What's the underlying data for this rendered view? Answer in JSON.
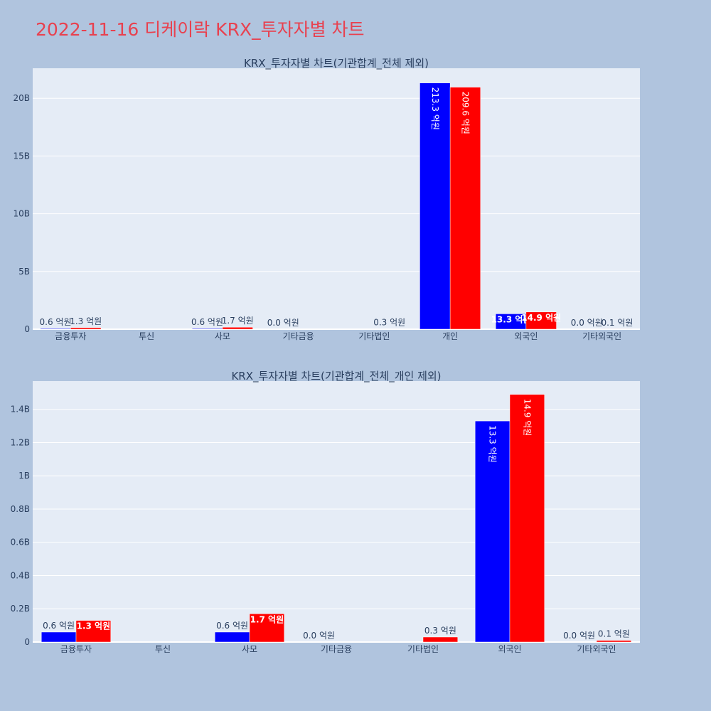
{
  "page_title": "2022-11-16 디케이락 KRX_투자자별 차트",
  "colors": {
    "buy": "#0000ff",
    "sell": "#ff0000",
    "title": "#e8414f",
    "plot_bg": "#e5ecf6",
    "page_bg": "#b0c4de"
  },
  "chart_data": [
    {
      "type": "bar",
      "title": "KRX_투자자별 차트(기관합계_전체 제외)",
      "categories": [
        "금융투자",
        "투신",
        "사모",
        "기타금융",
        "기타법인",
        "개인",
        "외국인",
        "기타외국인"
      ],
      "ylim": [
        0,
        22600000000
      ],
      "yticks": [
        0,
        5000000000,
        10000000000,
        15000000000,
        20000000000
      ],
      "ytick_labels": [
        "0",
        "5B",
        "10B",
        "15B",
        "20B"
      ],
      "series": [
        {
          "color": "#0000ff",
          "values": [
            60000000,
            0,
            60000000,
            0,
            0,
            21330000000,
            1330000000,
            0
          ],
          "labels": [
            "0.6 억원",
            "",
            "0.6 억원",
            "0.0 억원",
            "",
            "213.3 억원",
            "13.3 억원",
            "0.0 억원"
          ]
        },
        {
          "color": "#ff0000",
          "values": [
            130000000,
            0,
            170000000,
            0,
            30000000,
            20960000000,
            1490000000,
            10000000
          ],
          "labels": [
            "1.3 억원",
            "",
            "1.7 억원",
            "",
            "0.3 억원",
            "209.6 억원",
            "14.9 억원",
            "0.1 억원"
          ]
        }
      ],
      "grid": true
    },
    {
      "type": "bar",
      "title": "KRX_투자자별 차트(기관합계_전체_개인 제외)",
      "categories": [
        "금융투자",
        "투신",
        "사모",
        "기타금융",
        "기타법인",
        "외국인",
        "기타외국인"
      ],
      "ylim": [
        0,
        1570000000
      ],
      "yticks": [
        0,
        200000000,
        400000000,
        600000000,
        800000000,
        1000000000,
        1200000000,
        1400000000
      ],
      "ytick_labels": [
        "0",
        "0.2B",
        "0.4B",
        "0.6B",
        "0.8B",
        "1B",
        "1.2B",
        "1.4B"
      ],
      "series": [
        {
          "color": "#0000ff",
          "values": [
            60000000,
            0,
            60000000,
            0,
            0,
            1330000000,
            0
          ],
          "labels": [
            "0.6 억원",
            "",
            "0.6 억원",
            "0.0 억원",
            "",
            "13.3 억원",
            "0.0 억원"
          ]
        },
        {
          "color": "#ff0000",
          "values": [
            130000000,
            0,
            170000000,
            0,
            30000000,
            1490000000,
            10000000
          ],
          "labels": [
            "1.3 억원",
            "",
            "1.7 억원",
            "",
            "0.3 억원",
            "14.9 억원",
            "0.1 억원"
          ]
        }
      ],
      "grid": true
    }
  ]
}
